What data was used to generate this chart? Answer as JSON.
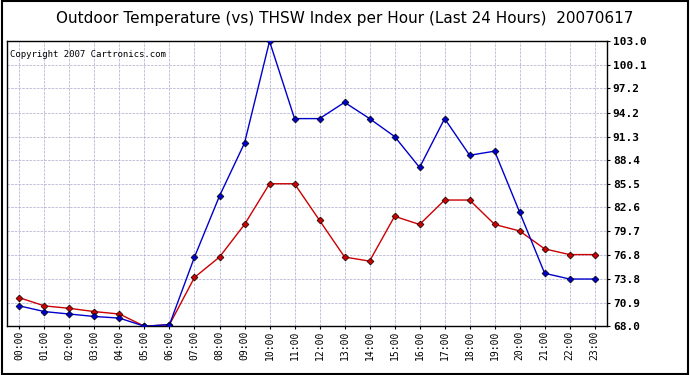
{
  "title": "Outdoor Temperature (vs) THSW Index per Hour (Last 24 Hours)  20070617",
  "copyright": "Copyright 2007 Cartronics.com",
  "hours": [
    0,
    1,
    2,
    3,
    4,
    5,
    6,
    7,
    8,
    9,
    10,
    11,
    12,
    13,
    14,
    15,
    16,
    17,
    18,
    19,
    20,
    21,
    22,
    23
  ],
  "temp": [
    71.5,
    70.5,
    70.2,
    69.8,
    69.5,
    68.0,
    68.2,
    74.0,
    76.5,
    80.5,
    85.5,
    85.5,
    81.0,
    76.5,
    76.0,
    81.5,
    80.5,
    83.5,
    83.5,
    80.5,
    79.7,
    77.5,
    76.8,
    76.8
  ],
  "thsw": [
    70.5,
    69.8,
    69.5,
    69.2,
    69.0,
    68.0,
    68.2,
    76.5,
    84.0,
    90.5,
    103.0,
    93.5,
    93.5,
    95.5,
    93.5,
    91.3,
    87.5,
    93.5,
    89.0,
    89.5,
    82.0,
    74.5,
    73.8,
    73.8
  ],
  "temp_color": "#cc0000",
  "thsw_color": "#0000cc",
  "marker_edge_color": "#000000",
  "ylim_min": 68.0,
  "ylim_max": 103.0,
  "yticks": [
    68.0,
    70.9,
    73.8,
    76.8,
    79.7,
    82.6,
    85.5,
    88.4,
    91.3,
    94.2,
    97.2,
    100.1,
    103.0
  ],
  "bg_color": "#ffffff",
  "plot_bg": "#ffffff",
  "grid_color": "#aaaacc",
  "title_fontsize": 11,
  "copyright_fontsize": 6.5,
  "tick_fontsize": 7,
  "ytick_fontsize": 8
}
